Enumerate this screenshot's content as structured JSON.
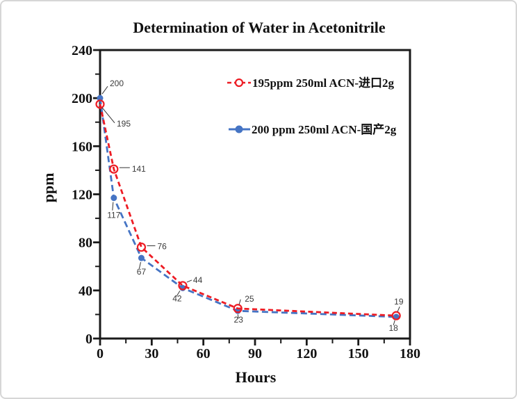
{
  "frame": {
    "background": "#ffffff",
    "border_color": "#d6d6d6"
  },
  "chart_data": {
    "type": "line",
    "title": "Determination of Water in Acetonitrile",
    "xlabel": "Hours",
    "ylabel": "ppm",
    "xlim": [
      0,
      180
    ],
    "ylim": [
      0,
      240
    ],
    "x_major_ticks": [
      0,
      30,
      60,
      90,
      120,
      150,
      180
    ],
    "x_minor_tick_step": 15,
    "y_major_ticks": [
      0,
      40,
      80,
      120,
      160,
      200,
      240
    ],
    "y_minor_tick_step": 20,
    "grid": false,
    "legend_position": "inside-top-center",
    "axis_color": "#1a1a1a",
    "leader_line_color": "#333333",
    "point_label_color": "#3a3a3a",
    "series": [
      {
        "name": "195ppm  250ml ACN-进口2g",
        "color": "#ed1c24",
        "marker": "open-circle",
        "line_style": "dashed",
        "x": [
          0,
          8,
          24,
          48,
          80,
          172
        ],
        "values": [
          195,
          141,
          76,
          44,
          25,
          19
        ],
        "point_labels": [
          "195",
          "141",
          "76",
          "44",
          "25",
          "19"
        ]
      },
      {
        "name": "200 ppm 250ml ACN-国产2g",
        "color": "#4574c4",
        "marker": "filled-circle",
        "line_style": "dashed",
        "x": [
          0,
          8,
          24,
          48,
          80,
          172
        ],
        "values": [
          200,
          117,
          67,
          42,
          23,
          18
        ],
        "point_labels": [
          "200",
          "117",
          "67",
          "42",
          "23",
          "18"
        ]
      }
    ]
  }
}
